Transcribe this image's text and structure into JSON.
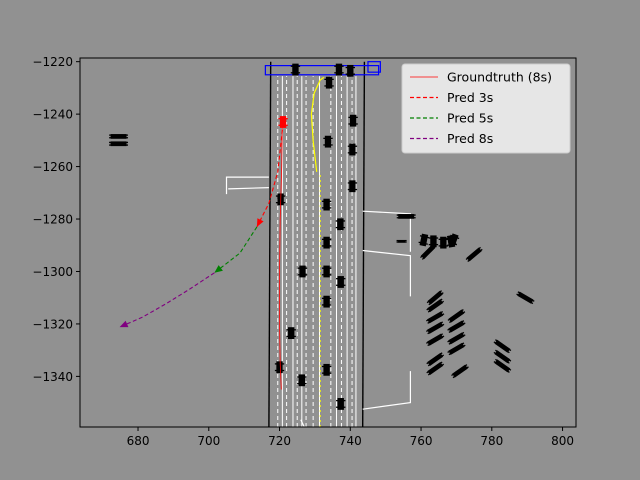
{
  "chart_data": {
    "type": "line",
    "title": "",
    "xlabel": "",
    "ylabel": "",
    "xlim": [
      663.6,
      803.8
    ],
    "ylim": [
      -1359.3,
      -1218.6
    ],
    "xticks": [
      680,
      700,
      720,
      740,
      760,
      780,
      800
    ],
    "yticks": [
      -1220,
      -1240,
      -1260,
      -1280,
      -1300,
      -1320,
      -1340
    ],
    "legend": {
      "position": "top-right",
      "entries": [
        {
          "label": "Groundtruth (8s)",
          "color": "#ff0000",
          "style": "solid"
        },
        {
          "label": "Pred 3s",
          "color": "#ff0000",
          "style": "dashed"
        },
        {
          "label": "Pred 5s",
          "color": "#008000",
          "style": "dashed"
        },
        {
          "label": "Pred 8s",
          "color": "#800080",
          "style": "dashed"
        }
      ]
    },
    "series": [
      {
        "name": "Groundtruth (8s)",
        "color": "#ff0000",
        "style": "solid",
        "x": [
          720.8,
          720.6,
          720.2,
          720.0,
          720.0,
          720.2,
          720.5
        ],
        "y": [
          -1241.0,
          -1260.0,
          -1280.0,
          -1300.0,
          -1320.0,
          -1335.0,
          -1345.0
        ]
      },
      {
        "name": "Pred 3s",
        "color": "#ff0000",
        "style": "dashed",
        "x": [
          720.8,
          719.5,
          717.0,
          713.6
        ],
        "y": [
          -1246.0,
          -1262.0,
          -1274.0,
          -1283.0
        ]
      },
      {
        "name": "Pred 5s",
        "color": "#008000",
        "style": "dashed",
        "x": [
          713.6,
          708.8,
          701.6
        ],
        "y": [
          -1283.0,
          -1293.0,
          -1300.5
        ]
      },
      {
        "name": "Pred 8s",
        "color": "#800080",
        "style": "dashed",
        "x": [
          701.6,
          694.3,
          687.8,
          681.3,
          674.8
        ],
        "y": [
          -1300.5,
          -1307.0,
          -1312.4,
          -1317.4,
          -1321.2
        ]
      }
    ],
    "road": {
      "lane_boundaries_solid": [
        {
          "x": [
            717.0,
            717.5
          ],
          "y": [
            -1359.3,
            -1220.0
          ]
        },
        {
          "x": [
            743.5,
            744.0
          ],
          "y": [
            -1359.3,
            -1220.0
          ]
        }
      ],
      "lane_dividers_dashed_x": [
        719.5,
        722.0,
        725.0,
        727.5,
        729.5,
        734.5,
        737.5,
        740.5
      ],
      "lane_lines_solid_x": [
        720.8,
        723.8,
        726.3,
        731.3,
        736.1,
        739.1,
        741.6
      ],
      "ego_box": {
        "x": [
          716.0,
          748.0
        ],
        "y": [
          -1225.0,
          -1221.5
        ]
      },
      "ego_box_small": {
        "x": [
          745.0,
          748.5
        ],
        "y": [
          -1224.0,
          -1220.0
        ]
      },
      "yellow_curve": {
        "x": [
          730.5,
          729.5,
          729.0,
          729.8,
          731.5,
          732.5
        ],
        "y": [
          -1262.0,
          -1250.0,
          -1240.0,
          -1232.0,
          -1227.0,
          -1226.0
        ]
      },
      "ego_vehicle": {
        "x": 721.0,
        "y": -1243.0,
        "color": "#ff0000"
      },
      "vehicles": [
        {
          "x": 724.5,
          "y": -1223.0,
          "w": 1.8,
          "h": 4.5,
          "a": 0
        },
        {
          "x": 734.0,
          "y": -1228.0,
          "w": 1.8,
          "h": 4.5,
          "a": 0
        },
        {
          "x": 736.8,
          "y": -1223.0,
          "w": 1.8,
          "h": 4.5,
          "a": 0
        },
        {
          "x": 740.0,
          "y": -1223.5,
          "w": 1.8,
          "h": 4.5,
          "a": 0
        },
        {
          "x": 740.8,
          "y": -1242.5,
          "w": 1.8,
          "h": 4.5,
          "a": 0
        },
        {
          "x": 740.6,
          "y": -1253.5,
          "w": 1.8,
          "h": 4.5,
          "a": 0
        },
        {
          "x": 733.7,
          "y": -1250.5,
          "w": 1.8,
          "h": 4.5,
          "a": 0
        },
        {
          "x": 740.6,
          "y": -1267.5,
          "w": 1.8,
          "h": 4.5,
          "a": 0
        },
        {
          "x": 720.3,
          "y": -1272.5,
          "w": 1.8,
          "h": 4.5,
          "a": 0
        },
        {
          "x": 733.3,
          "y": -1274.5,
          "w": 1.8,
          "h": 4.5,
          "a": 0
        },
        {
          "x": 737.2,
          "y": -1282.0,
          "w": 1.8,
          "h": 4.5,
          "a": 0
        },
        {
          "x": 733.3,
          "y": -1289.0,
          "w": 1.8,
          "h": 4.5,
          "a": 0
        },
        {
          "x": 726.5,
          "y": -1300.0,
          "w": 1.8,
          "h": 4.5,
          "a": 0
        },
        {
          "x": 733.3,
          "y": -1300.0,
          "w": 1.8,
          "h": 4.5,
          "a": 0
        },
        {
          "x": 737.3,
          "y": -1304.0,
          "w": 1.8,
          "h": 4.5,
          "a": 0
        },
        {
          "x": 733.3,
          "y": -1311.5,
          "w": 1.8,
          "h": 4.5,
          "a": 0
        },
        {
          "x": 723.3,
          "y": -1323.5,
          "w": 1.8,
          "h": 4.5,
          "a": 0
        },
        {
          "x": 720.0,
          "y": -1336.5,
          "w": 1.8,
          "h": 4.5,
          "a": 0
        },
        {
          "x": 733.3,
          "y": -1337.5,
          "w": 1.8,
          "h": 4.5,
          "a": 0
        },
        {
          "x": 726.3,
          "y": -1341.5,
          "w": 1.8,
          "h": 4.5,
          "a": 0
        },
        {
          "x": 737.3,
          "y": -1350.5,
          "w": 1.8,
          "h": 4.5,
          "a": 0
        },
        {
          "x": 674.5,
          "y": -1248.5,
          "w": 4.5,
          "h": 1.8,
          "a": 0
        },
        {
          "x": 674.5,
          "y": -1251.3,
          "w": 4.5,
          "h": 1.8,
          "a": 0
        },
        {
          "x": 755.8,
          "y": -1279.0,
          "w": 4.5,
          "h": 1.8,
          "a": 0
        },
        {
          "x": 754.5,
          "y": -1288.5,
          "w": 2.0,
          "h": 1.0,
          "a": 0
        },
        {
          "x": 760.8,
          "y": -1288.0,
          "w": 1.8,
          "h": 4.5,
          "a": 12
        },
        {
          "x": 763.5,
          "y": -1288.5,
          "w": 1.8,
          "h": 4.5,
          "a": 0
        },
        {
          "x": 766.3,
          "y": -1289.0,
          "w": 1.8,
          "h": 4.5,
          "a": 0
        },
        {
          "x": 768.5,
          "y": -1288.5,
          "w": 1.8,
          "h": 4.5,
          "a": -10
        },
        {
          "x": 769.2,
          "y": -1288.0,
          "w": 1.8,
          "h": 4.5,
          "a": 20
        },
        {
          "x": 762.0,
          "y": -1292.5,
          "w": 4.5,
          "h": 1.8,
          "a": -45
        },
        {
          "x": 775.0,
          "y": -1293.5,
          "w": 4.5,
          "h": 1.8,
          "a": -40
        },
        {
          "x": 789.5,
          "y": -1310.0,
          "w": 4.5,
          "h": 1.8,
          "a": 30
        },
        {
          "x": 764.0,
          "y": -1310.0,
          "w": 4.5,
          "h": 1.8,
          "a": -40
        },
        {
          "x": 764.0,
          "y": -1313.0,
          "w": 4.5,
          "h": 1.8,
          "a": -35
        },
        {
          "x": 764.0,
          "y": -1317.5,
          "w": 4.5,
          "h": 1.8,
          "a": -30
        },
        {
          "x": 764.0,
          "y": -1321.5,
          "w": 4.5,
          "h": 1.8,
          "a": -30
        },
        {
          "x": 764.0,
          "y": -1326.0,
          "w": 4.5,
          "h": 1.8,
          "a": -30
        },
        {
          "x": 770.0,
          "y": -1317.0,
          "w": 4.5,
          "h": 1.8,
          "a": -35
        },
        {
          "x": 770.0,
          "y": -1321.0,
          "w": 4.5,
          "h": 1.8,
          "a": -30
        },
        {
          "x": 770.0,
          "y": -1325.5,
          "w": 4.5,
          "h": 1.8,
          "a": -30
        },
        {
          "x": 770.0,
          "y": -1329.5,
          "w": 4.5,
          "h": 1.8,
          "a": -30
        },
        {
          "x": 764.0,
          "y": -1333.5,
          "w": 4.5,
          "h": 1.8,
          "a": -35
        },
        {
          "x": 764.0,
          "y": -1337.0,
          "w": 4.5,
          "h": 1.8,
          "a": -35
        },
        {
          "x": 771.0,
          "y": -1338.0,
          "w": 4.5,
          "h": 1.8,
          "a": -35
        },
        {
          "x": 783.0,
          "y": -1328.5,
          "w": 4.5,
          "h": 1.8,
          "a": 35
        },
        {
          "x": 783.0,
          "y": -1332.5,
          "w": 4.5,
          "h": 1.8,
          "a": 35
        },
        {
          "x": 783.0,
          "y": -1336.0,
          "w": 4.5,
          "h": 1.8,
          "a": 35
        }
      ],
      "white_polylines": [
        {
          "x": [
            705.0,
            705.0,
            717.0
          ],
          "y": [
            -1270.5,
            -1264.0,
            -1264.0
          ]
        },
        {
          "x": [
            705.5,
            717.0
          ],
          "y": [
            -1268.5,
            -1268.0
          ]
        },
        {
          "x": [
            743.5,
            757.0,
            757.0
          ],
          "y": [
            -1277.0,
            -1278.0,
            -1292.5
          ]
        },
        {
          "x": [
            743.5,
            757.0,
            757.0
          ],
          "y": [
            -1292.0,
            -1294.0,
            -1309.5
          ]
        },
        {
          "x": [
            743.5,
            757.0,
            757.0
          ],
          "y": [
            -1352.5,
            -1350.0,
            -1338.0
          ]
        },
        {
          "x": [
            726.0,
            727.0
          ],
          "y": [
            -1356.5,
            -1359.3
          ]
        }
      ]
    }
  }
}
